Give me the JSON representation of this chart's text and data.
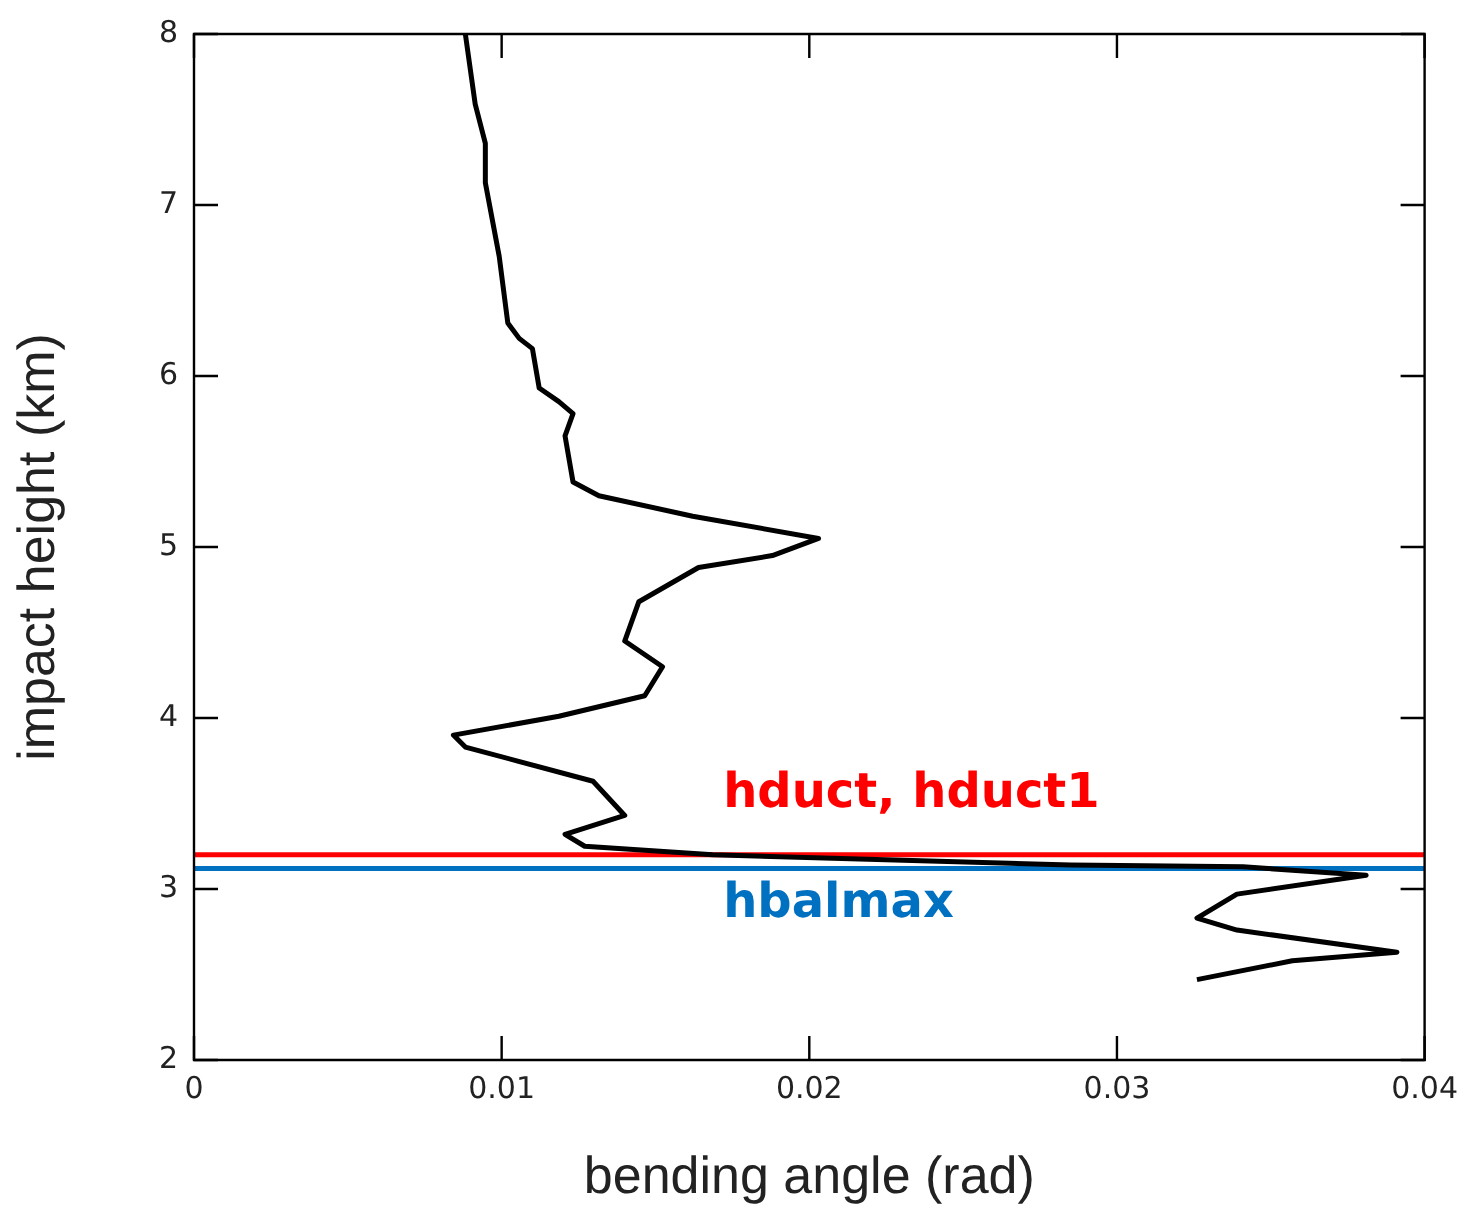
{
  "chart_data": {
    "type": "line",
    "xlabel": "bending angle (rad)",
    "ylabel": "impact height (km)",
    "series": [
      {
        "color": "#000000",
        "x": [
          0.00882,
          0.00914,
          0.00947,
          0.00947,
          0.00992,
          0.0102,
          0.01057,
          0.011,
          0.01122,
          0.01186,
          0.01232,
          0.01206,
          0.01232,
          0.01316,
          0.01621,
          0.0203,
          0.0188,
          0.0164,
          0.01446,
          0.014,
          0.01523,
          0.01465,
          0.01186,
          0.00843,
          0.00882,
          0.01297,
          0.014,
          0.01206,
          0.0127,
          0.01686,
          0.0285,
          0.0341,
          0.0381,
          0.0339,
          0.0326,
          0.0339,
          0.0391,
          0.0357,
          0.0326
        ],
        "values": [
          8,
          7.59,
          7.36,
          7.13,
          6.7,
          6.31,
          6.22,
          6.16,
          5.93,
          5.85,
          5.78,
          5.65,
          5.38,
          5.3,
          5.18,
          5.05,
          4.95,
          4.88,
          4.68,
          4.45,
          4.3,
          4.13,
          4.01,
          3.9,
          3.83,
          3.63,
          3.43,
          3.32,
          3.25,
          3.2,
          3.14,
          3.13,
          3.08,
          2.97,
          2.83,
          2.76,
          2.63,
          2.58,
          2.47
        ]
      }
    ],
    "xlim": [
      0,
      0.04
    ],
    "xticks": [
      0,
      0.01,
      0.02,
      0.03,
      0.04
    ],
    "ylim": [
      2,
      8
    ],
    "yticks": [
      2,
      3,
      4,
      5,
      6,
      7,
      8
    ],
    "grid": false,
    "legend": false,
    "marker": "none",
    "line_style": "solid",
    "ref_lines": [
      {
        "axis": "y",
        "value": 3.2,
        "label": "hduct, hduct1",
        "color": "#ff0000"
      },
      {
        "axis": "y",
        "value": 3.12,
        "label": "hbalmax",
        "color": "#0070c0"
      }
    ]
  }
}
